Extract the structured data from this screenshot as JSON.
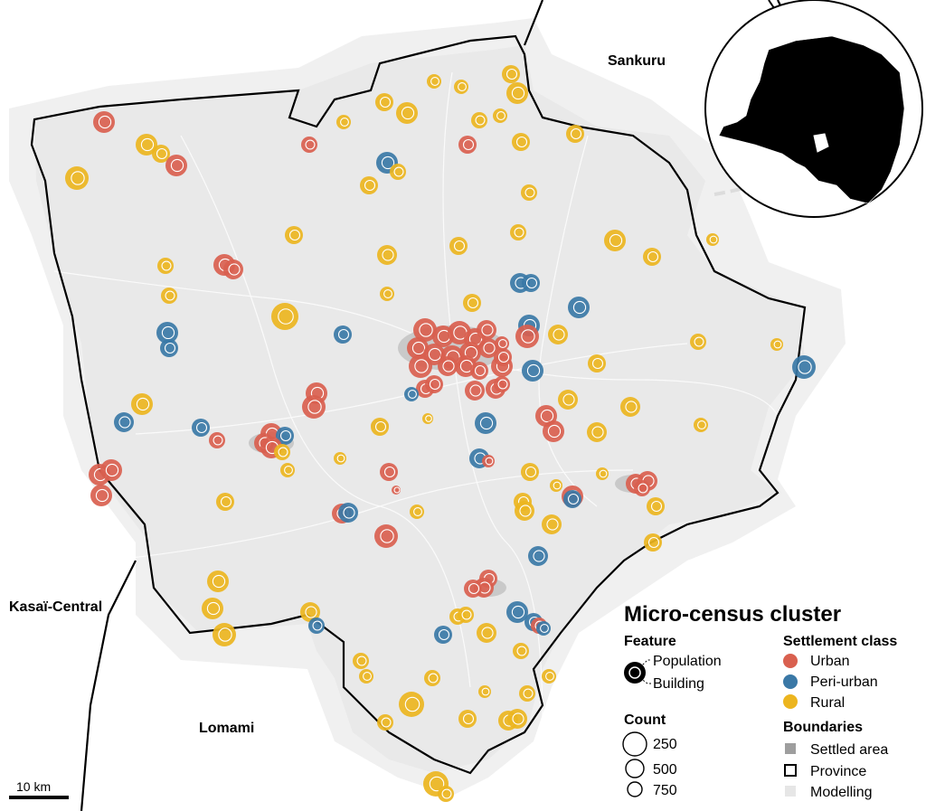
{
  "region_labels": {
    "north": "Sankuru",
    "west": "Kasaï-Central",
    "south": "Lomami"
  },
  "scale_bar": {
    "label": "10 km"
  },
  "legend": {
    "title": "Micro-census cluster",
    "feature": {
      "heading": "Feature",
      "outer": "Population",
      "inner": "Building"
    },
    "count": {
      "heading": "Count",
      "items": [
        "250",
        "500",
        "750"
      ]
    },
    "settlement_class": {
      "heading": "Settlement class",
      "items": [
        {
          "label": "Urban",
          "color": "#d9604f"
        },
        {
          "label": "Peri-urban",
          "color": "#3a78a6"
        },
        {
          "label": "Rural",
          "color": "#ecb51f"
        }
      ]
    },
    "boundaries": {
      "heading": "Boundaries",
      "items": [
        {
          "label": "Settled area",
          "color": "#9e9e9e"
        },
        {
          "label": "Province",
          "color": "#000000"
        },
        {
          "label": "Modelling",
          "color": "#e6e6e6"
        }
      ]
    }
  },
  "colors": {
    "urban": "#d9604f",
    "peri_urban": "#3a78a6",
    "rural": "#ecb51f",
    "study_area": "#e9e9e9",
    "buffer": "#efefef",
    "roads": "#ffffff"
  }
}
